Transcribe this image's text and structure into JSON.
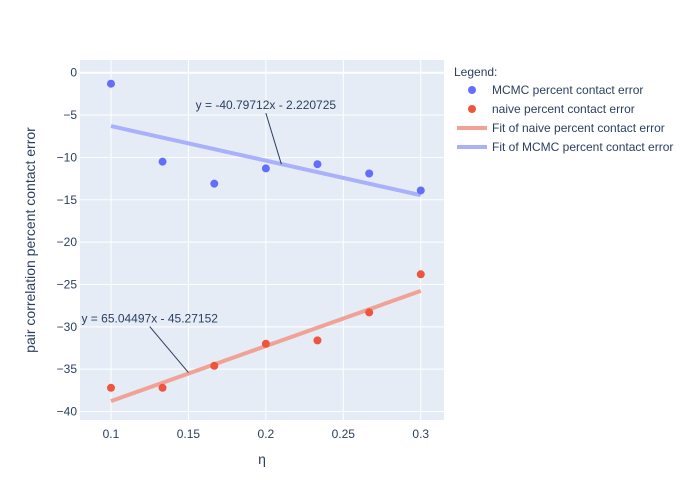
{
  "chart_data": {
    "type": "scatter",
    "xlabel": "η",
    "ylabel": "pair correlation percent contact error",
    "xlim": [
      0.08,
      0.315
    ],
    "ylim": [
      -41,
      1.5
    ],
    "x_ticks": [
      0.1,
      0.15,
      0.2,
      0.25,
      0.3
    ],
    "x_tick_labels": [
      "0.1",
      "0.15",
      "0.2",
      "0.25",
      "0.3"
    ],
    "y_ticks": [
      0,
      -5,
      -10,
      -15,
      -20,
      -25,
      -30,
      -35,
      -40
    ],
    "y_tick_labels": [
      "0",
      "−5",
      "−10",
      "−15",
      "−20",
      "−25",
      "−30",
      "−35",
      "−40"
    ],
    "grid": true,
    "legend_position": "right",
    "legend_title": "Legend:",
    "series": [
      {
        "name": "MCMC percent contact error",
        "kind": "markers",
        "color": "#636efa",
        "x": [
          0.1,
          0.1333,
          0.1667,
          0.2,
          0.2333,
          0.2667,
          0.3
        ],
        "y": [
          -1.3,
          -10.5,
          -13.1,
          -11.3,
          -10.8,
          -11.9,
          -13.9
        ]
      },
      {
        "name": "naive percent contact error",
        "kind": "markers",
        "color": "#ef553b",
        "x": [
          0.1,
          0.1333,
          0.1667,
          0.2,
          0.2333,
          0.2667,
          0.3
        ],
        "y": [
          -37.2,
          -37.2,
          -34.6,
          -32.0,
          -31.6,
          -28.3,
          -23.8
        ]
      },
      {
        "name": "Fit of naive percent contact error",
        "kind": "line",
        "color": "#f1a297",
        "x": [
          0.1,
          0.3
        ],
        "y": [
          -38.77,
          -25.76
        ]
      },
      {
        "name": "Fit of MCMC percent contact error",
        "kind": "line",
        "color": "#aab1fb",
        "x": [
          0.1,
          0.3
        ],
        "y": [
          -6.3,
          -14.46
        ]
      }
    ],
    "annotations": [
      {
        "text": "y = -40.79712x - 2.220725",
        "x": 0.21,
        "y": -10.8,
        "text_x": 0.2,
        "text_y": -4.3
      },
      {
        "text": "y = 65.04497x - 45.27152",
        "x": 0.15,
        "y": -35.4,
        "text_x": 0.125,
        "text_y": -29.5
      }
    ]
  }
}
